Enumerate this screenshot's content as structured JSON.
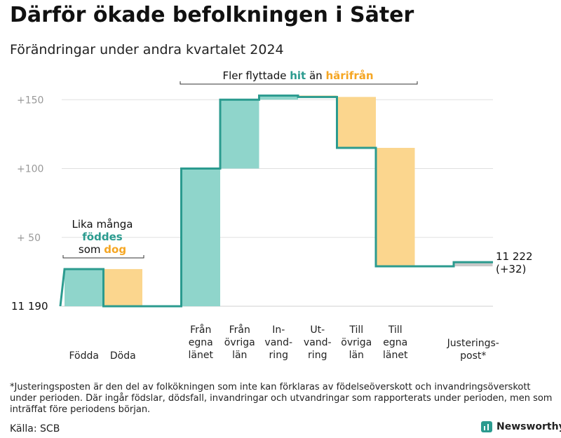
{
  "header": {
    "title": "Därför ökade befolkningen i Säter",
    "subtitle": "Förändringar under andra kvartalet 2024"
  },
  "chart_data": {
    "type": "waterfall",
    "base_label": "11  190",
    "base_value": 11190,
    "y_axis": {
      "ticks": [
        {
          "value": 150,
          "label": "+150"
        },
        {
          "value": 100,
          "label": "+100"
        },
        {
          "value": 50,
          "label": "+  50"
        }
      ],
      "range": [
        0,
        150
      ]
    },
    "steps": [
      {
        "id": "fodda",
        "label_lines": [
          "Födda"
        ],
        "from": 0,
        "to": 27,
        "kind": "gain"
      },
      {
        "id": "doda",
        "label_lines": [
          "Döda"
        ],
        "from": 27,
        "to": 0,
        "kind": "loss"
      },
      {
        "id": "spacer",
        "label_lines": [],
        "from": 0,
        "to": 0,
        "kind": "flat"
      },
      {
        "id": "fran-egna-lanet",
        "label_lines": [
          "Från",
          "egna",
          "länet"
        ],
        "from": 0,
        "to": 100,
        "kind": "gain"
      },
      {
        "id": "fran-ovriga-lan",
        "label_lines": [
          "Från",
          "övriga",
          "län"
        ],
        "from": 100,
        "to": 150,
        "kind": "gain"
      },
      {
        "id": "invandring",
        "label_lines": [
          "In-",
          "vand-",
          "ring"
        ],
        "from": 150,
        "to": 153,
        "kind": "gain"
      },
      {
        "id": "utvandring",
        "label_lines": [
          "Ut-",
          "vand-",
          "ring"
        ],
        "from": 153,
        "to": 152,
        "kind": "loss"
      },
      {
        "id": "till-ovriga-lan",
        "label_lines": [
          "Till",
          "övriga",
          "län"
        ],
        "from": 152,
        "to": 115,
        "kind": "loss"
      },
      {
        "id": "till-egna-lanet",
        "label_lines": [
          "Till",
          "egna",
          "länet"
        ],
        "from": 115,
        "to": 29,
        "kind": "loss"
      },
      {
        "id": "spacer2",
        "label_lines": [],
        "from": 29,
        "to": 29,
        "kind": "flat"
      },
      {
        "id": "justeringspost",
        "label_lines": [
          "Justerings-",
          "post*"
        ],
        "from": 29,
        "to": 32,
        "kind": "adjust"
      }
    ],
    "end_label": "11 222",
    "end_change_label": "(+32)",
    "annotations": {
      "births": {
        "line1": "Lika många",
        "word_born": "föddes",
        "prefix_died": "som",
        "word_died": "dog"
      },
      "migration": {
        "prefix": "Fler flyttade",
        "word_here": "hit",
        "mid": "än",
        "word_from": "härifrån"
      }
    },
    "colors": {
      "gain": "#8fd5cb",
      "loss": "#fbd68e",
      "adjust": "#c8c8c8",
      "line": "#2b9b8f",
      "gain_text": "#2b9b8f",
      "loss_text": "#f5a623",
      "axis_text": "#999999",
      "grid": "#e0e0e0"
    }
  },
  "footer": {
    "footnote": "*Justeringsposten är den del av folkökningen som inte kan förklaras av födelseöverskott och invandringsöverskott under perioden. Där ingår födslar, dödsfall, invandringar och utvandringar som rapporterats under perioden, men som inträffat före periodens början.",
    "source": "Källa: SCB",
    "brand": "Newsworthy"
  }
}
